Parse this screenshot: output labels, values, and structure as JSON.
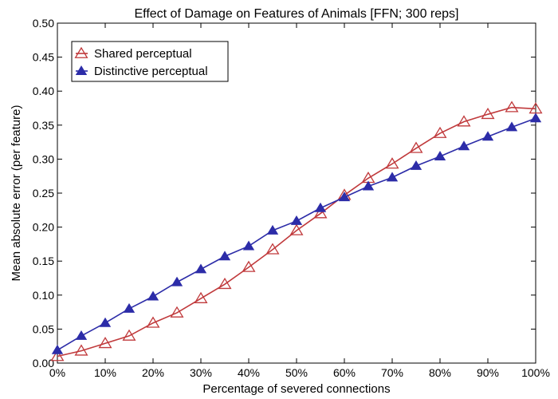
{
  "chart_data": {
    "type": "line",
    "title": "Effect of Damage on Features of Animals [FFN; 300 reps]",
    "xlabel": "Percentage of severed connections",
    "ylabel": "Mean absolute error (per feature)",
    "xlim": [
      0,
      100
    ],
    "ylim": [
      0,
      0.5
    ],
    "x_ticks": [
      0,
      10,
      20,
      30,
      40,
      50,
      60,
      70,
      80,
      90,
      100
    ],
    "x_tick_labels": [
      "0%",
      "10%",
      "20%",
      "30%",
      "40%",
      "50%",
      "60%",
      "70%",
      "80%",
      "90%",
      "100%"
    ],
    "y_ticks": [
      0,
      0.05,
      0.1,
      0.15,
      0.2,
      0.25,
      0.3,
      0.35,
      0.4,
      0.45,
      0.5
    ],
    "y_tick_labels": [
      "0.00",
      "0.05",
      "0.10",
      "0.15",
      "0.20",
      "0.25",
      "0.30",
      "0.35",
      "0.40",
      "0.45",
      "0.50"
    ],
    "grid": false,
    "legend_position": "top-left",
    "x": [
      0,
      5,
      10,
      15,
      20,
      25,
      30,
      35,
      40,
      45,
      50,
      55,
      60,
      65,
      70,
      75,
      80,
      85,
      90,
      95,
      100
    ],
    "series": [
      {
        "name": "Shared perceptual",
        "color": "#c0393b",
        "marker": "open-triangle",
        "values": [
          0.01,
          0.018,
          0.029,
          0.04,
          0.059,
          0.074,
          0.095,
          0.116,
          0.141,
          0.167,
          0.195,
          0.22,
          0.247,
          0.272,
          0.293,
          0.316,
          0.338,
          0.355,
          0.366,
          0.376,
          0.374
        ]
      },
      {
        "name": "Distinctive perceptual",
        "color": "#2c2ca8",
        "marker": "filled-triangle",
        "values": [
          0.019,
          0.04,
          0.059,
          0.08,
          0.098,
          0.119,
          0.138,
          0.157,
          0.172,
          0.195,
          0.209,
          0.228,
          0.244,
          0.26,
          0.273,
          0.29,
          0.304,
          0.319,
          0.333,
          0.347,
          0.36
        ]
      }
    ]
  }
}
